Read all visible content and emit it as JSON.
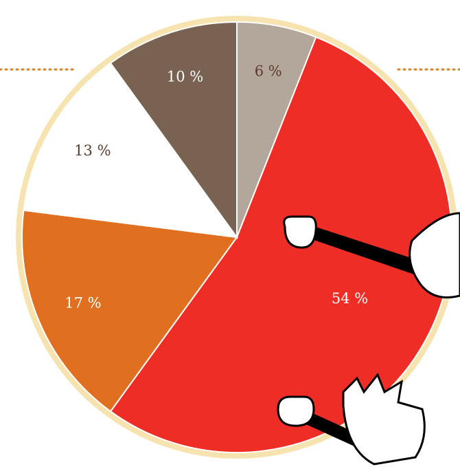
{
  "chart_data": {
    "type": "pie",
    "values": [
      6,
      54,
      17,
      13,
      10
    ],
    "value_labels": [
      "6 %",
      "54 %",
      "17 %",
      "13 %",
      "10 %"
    ],
    "colors": [
      "#b3a69a",
      "#ee2e26",
      "#e07020",
      "#ffffff",
      "#7a6252"
    ]
  }
}
